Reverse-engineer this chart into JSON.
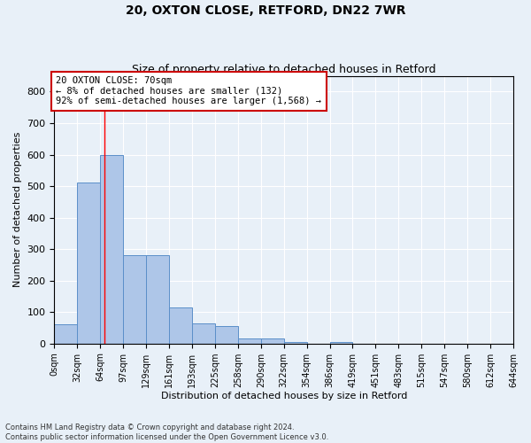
{
  "title_line1": "20, OXTON CLOSE, RETFORD, DN22 7WR",
  "title_line2": "Size of property relative to detached houses in Retford",
  "xlabel": "Distribution of detached houses by size in Retford",
  "ylabel": "Number of detached properties",
  "footer_line1": "Contains HM Land Registry data © Crown copyright and database right 2024.",
  "footer_line2": "Contains public sector information licensed under the Open Government Licence v3.0.",
  "bin_labels": [
    "0sqm",
    "32sqm",
    "64sqm",
    "97sqm",
    "129sqm",
    "161sqm",
    "193sqm",
    "225sqm",
    "258sqm",
    "290sqm",
    "322sqm",
    "354sqm",
    "386sqm",
    "419sqm",
    "451sqm",
    "483sqm",
    "515sqm",
    "547sqm",
    "580sqm",
    "612sqm",
    "644sqm"
  ],
  "bar_values": [
    60,
    510,
    600,
    280,
    280,
    115,
    65,
    55,
    15,
    15,
    5,
    0,
    5,
    0,
    0,
    0,
    0,
    0,
    0,
    0
  ],
  "bar_color": "#aec6e8",
  "bar_edge_color": "#5b8fc9",
  "background_color": "#e8f0f8",
  "grid_color": "#ffffff",
  "annotation_text_line1": "20 OXTON CLOSE: 70sqm",
  "annotation_text_line2": "← 8% of detached houses are smaller (132)",
  "annotation_text_line3": "92% of semi-detached houses are larger (1,568) →",
  "annotation_box_color": "#ffffff",
  "annotation_box_edge_color": "#cc0000",
  "ylim": [
    0,
    850
  ],
  "yticks": [
    0,
    100,
    200,
    300,
    400,
    500,
    600,
    700,
    800
  ]
}
